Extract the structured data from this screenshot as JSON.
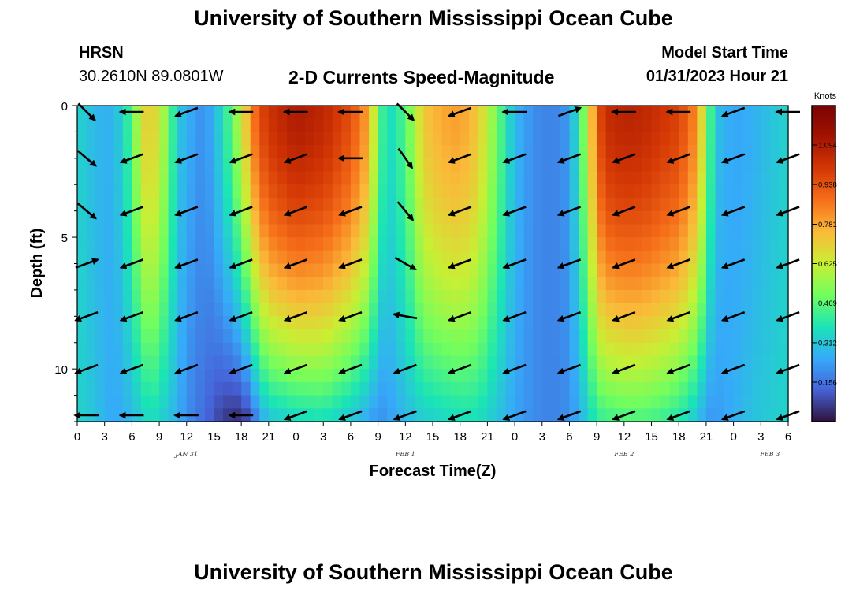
{
  "header": {
    "title": "University of Southern Mississippi Ocean Cube",
    "station": "HRSN",
    "coords": "30.2610N  89.0801W",
    "subtitle": "2-D Currents Speed-Magnitude",
    "model_start_label": "Model Start Time",
    "model_start_value": "01/31/2023 Hour 21"
  },
  "footer": {
    "title": "University of Southern Mississippi Ocean Cube"
  },
  "chart_data": {
    "type": "heatmap",
    "title": "2-D Currents Speed-Magnitude",
    "xlabel": "Forecast Time(Z)",
    "ylabel": "Depth (ft)",
    "x_ticks": [
      "0",
      "3",
      "6",
      "9",
      "12",
      "15",
      "18",
      "21",
      "0",
      "3",
      "6",
      "9",
      "12",
      "15",
      "18",
      "21",
      "0",
      "3",
      "6",
      "9",
      "12",
      "15",
      "18",
      "21",
      "0",
      "3",
      "6"
    ],
    "date_labels": [
      {
        "label": "JAN 31",
        "hour": 12
      },
      {
        "label": "FEB 1",
        "hour": 36
      },
      {
        "label": "FEB 2",
        "hour": 60
      },
      {
        "label": "FEB 3",
        "hour": 76
      }
    ],
    "y_ticks": [
      "0",
      "5",
      "10"
    ],
    "ylim": [
      0,
      12
    ],
    "xlim_hours": [
      0,
      78
    ],
    "colorbar": {
      "unit": "Knots",
      "ticks": [
        "1.094",
        "0.938",
        "0.781",
        "0.625",
        "0.469",
        "0.312",
        "0.156"
      ],
      "range": [
        0,
        1.25
      ]
    },
    "speed_profile": {
      "hours": [
        0,
        2,
        4,
        6,
        7,
        8,
        9,
        10,
        11,
        12,
        14,
        16,
        18,
        19,
        20,
        21,
        24,
        27,
        30,
        32,
        33,
        34,
        36,
        38,
        40,
        42,
        44,
        46,
        48,
        50,
        52,
        54,
        56,
        57,
        58,
        60,
        62,
        64,
        66,
        68,
        69,
        70,
        72,
        74,
        76,
        78
      ],
      "surface_knots": [
        0.34,
        0.28,
        0.26,
        0.45,
        0.66,
        0.72,
        0.64,
        0.5,
        0.32,
        0.26,
        0.2,
        0.36,
        0.62,
        0.82,
        0.95,
        1.02,
        1.1,
        1.06,
        0.95,
        0.78,
        0.5,
        0.34,
        0.45,
        0.72,
        0.78,
        0.8,
        0.72,
        0.5,
        0.28,
        0.2,
        0.18,
        0.22,
        0.6,
        0.92,
        1.04,
        1.07,
        1.06,
        1.02,
        0.98,
        0.82,
        0.55,
        0.3,
        0.24,
        0.26,
        0.3,
        0.34
      ],
      "bottom_knots": [
        0.34,
        0.3,
        0.24,
        0.28,
        0.32,
        0.36,
        0.34,
        0.3,
        0.26,
        0.2,
        0.14,
        0.06,
        0.03,
        0.1,
        0.22,
        0.3,
        0.34,
        0.36,
        0.3,
        0.24,
        0.2,
        0.22,
        0.28,
        0.32,
        0.34,
        0.36,
        0.36,
        0.3,
        0.24,
        0.2,
        0.18,
        0.2,
        0.32,
        0.4,
        0.42,
        0.44,
        0.44,
        0.42,
        0.38,
        0.3,
        0.22,
        0.22,
        0.26,
        0.3,
        0.32,
        0.34
      ]
    },
    "vector_depths_ft": [
      0,
      2,
      4,
      6,
      8,
      10,
      12
    ],
    "vector_hours": [
      0,
      6,
      12,
      18,
      24,
      30,
      36,
      42,
      48,
      54,
      60,
      66,
      72,
      78
    ],
    "vector_direction_deg": [
      [
        -45,
        180,
        200,
        180,
        180,
        180,
        -45,
        200,
        180,
        20,
        180,
        180,
        200,
        180
      ],
      [
        -40,
        200,
        200,
        200,
        200,
        180,
        -55,
        200,
        200,
        200,
        200,
        200,
        200,
        200
      ],
      [
        -40,
        200,
        200,
        200,
        200,
        200,
        -50,
        200,
        200,
        200,
        200,
        200,
        200,
        200
      ],
      [
        20,
        200,
        200,
        200,
        200,
        200,
        -30,
        200,
        200,
        200,
        200,
        200,
        200,
        200
      ],
      [
        200,
        200,
        200,
        200,
        200,
        200,
        170,
        200,
        200,
        200,
        200,
        200,
        200,
        200
      ],
      [
        200,
        200,
        200,
        200,
        200,
        200,
        200,
        200,
        200,
        200,
        200,
        200,
        200,
        200
      ],
      [
        180,
        180,
        180,
        180,
        200,
        200,
        200,
        200,
        200,
        200,
        200,
        200,
        200,
        200
      ]
    ]
  }
}
